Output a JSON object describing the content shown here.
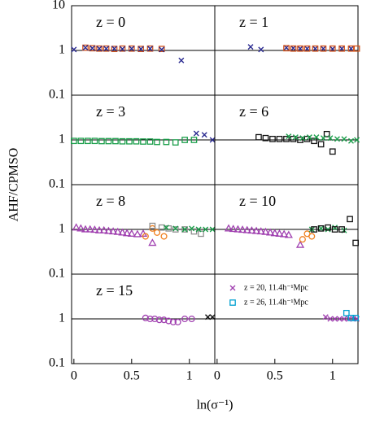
{
  "xlabel": "ln(σ⁻¹)",
  "ylabel": "AHF/CPMSO",
  "chart_data": [
    {
      "type": "scatter",
      "title": "z = 0",
      "xlim": [
        -0.02,
        1.22
      ],
      "ylim": [
        0.1,
        10
      ],
      "log_y": true,
      "hline": 1,
      "yticks": [
        0.1,
        1,
        10
      ],
      "series": [
        {
          "color": "#d4541c",
          "marker": "square",
          "x": [
            0.1,
            0.16,
            0.22,
            0.28,
            0.35,
            0.42,
            0.5,
            0.58,
            0.66,
            0.76
          ],
          "values": [
            1.15,
            1.12,
            1.1,
            1.1,
            1.08,
            1.1,
            1.1,
            1.08,
            1.1,
            1.08
          ]
        },
        {
          "color": "#2a2a90",
          "marker": "x",
          "x": [
            0,
            0.1,
            0.16,
            0.22,
            0.28,
            0.35,
            0.42,
            0.5,
            0.58,
            0.66,
            0.76,
            0.93
          ],
          "values": [
            1.05,
            1.15,
            1.12,
            1.1,
            1.1,
            1.1,
            1.08,
            1.1,
            1.08,
            1.1,
            1.05,
            0.6
          ]
        }
      ]
    },
    {
      "type": "scatter",
      "title": "z = 1",
      "xlim": [
        -0.02,
        1.22
      ],
      "ylim": [
        0.1,
        10
      ],
      "log_y": true,
      "hline": 1,
      "series": [
        {
          "color": "#2a2a90",
          "marker": "x",
          "x": [
            0.29,
            0.38,
            0.6,
            0.66,
            0.72,
            0.78,
            0.85,
            0.92,
            1.0,
            1.08,
            1.16
          ],
          "values": [
            1.2,
            1.05,
            1.15,
            1.12,
            1.1,
            1.1,
            1.1,
            1.1,
            1.08,
            1.1,
            1.1
          ]
        },
        {
          "color": "#d4541c",
          "marker": "square",
          "x": [
            0.6,
            0.66,
            0.72,
            0.78,
            0.85,
            0.92,
            1.0,
            1.08,
            1.16,
            1.21
          ],
          "values": [
            1.12,
            1.1,
            1.1,
            1.1,
            1.1,
            1.1,
            1.1,
            1.1,
            1.1,
            1.1
          ]
        }
      ]
    },
    {
      "type": "scatter",
      "title": "z = 3",
      "xlim": [
        -0.02,
        1.22
      ],
      "ylim": [
        0.1,
        10
      ],
      "log_y": true,
      "hline": 1,
      "yticks": [
        0.1,
        1
      ],
      "series": [
        {
          "color": "#1a9e4a",
          "marker": "square",
          "x": [
            0,
            0.06,
            0.12,
            0.18,
            0.24,
            0.3,
            0.36,
            0.42,
            0.48,
            0.54,
            0.6,
            0.66,
            0.72,
            0.8,
            0.88,
            0.96,
            1.04
          ],
          "values": [
            0.95,
            0.95,
            0.95,
            0.95,
            0.94,
            0.94,
            0.94,
            0.93,
            0.93,
            0.93,
            0.92,
            0.92,
            0.9,
            0.9,
            0.88,
            1.0,
            1.0
          ]
        },
        {
          "color": "#2a2a90",
          "marker": "x",
          "x": [
            1.06,
            1.13,
            1.2
          ],
          "values": [
            1.4,
            1.3,
            1.0
          ]
        }
      ]
    },
    {
      "type": "scatter",
      "title": "z = 6",
      "xlim": [
        -0.02,
        1.22
      ],
      "ylim": [
        0.1,
        10
      ],
      "log_y": true,
      "hline": 1,
      "series": [
        {
          "color": "#111111",
          "marker": "square",
          "x": [
            0.36,
            0.42,
            0.48,
            0.54,
            0.6,
            0.66,
            0.72,
            0.78,
            0.84,
            0.9,
            0.95,
            1.0
          ],
          "values": [
            1.15,
            1.1,
            1.05,
            1.05,
            1.05,
            1.05,
            1.0,
            1.05,
            0.95,
            0.8,
            1.35,
            0.55
          ]
        },
        {
          "color": "#1a9e4a",
          "marker": "x",
          "x": [
            0.62,
            0.68,
            0.74,
            0.8,
            0.86,
            0.92,
            0.98,
            1.04,
            1.1,
            1.16,
            1.21
          ],
          "values": [
            1.2,
            1.15,
            1.1,
            1.15,
            1.15,
            1.1,
            1.1,
            1.05,
            1.05,
            0.95,
            1.0
          ]
        }
      ]
    },
    {
      "type": "scatter",
      "title": "z = 8",
      "xlim": [
        -0.02,
        1.22
      ],
      "ylim": [
        0.1,
        10
      ],
      "log_y": true,
      "hline": 1,
      "yticks": [
        0.1,
        1
      ],
      "series": [
        {
          "color": "#a040b0",
          "marker": "triangle",
          "x": [
            0.02,
            0.06,
            0.1,
            0.14,
            0.18,
            0.22,
            0.26,
            0.3,
            0.34,
            0.38,
            0.42,
            0.46,
            0.5,
            0.55,
            0.6,
            0.68
          ],
          "values": [
            1.1,
            1.05,
            1.0,
            1.0,
            0.98,
            0.95,
            0.95,
            0.92,
            0.9,
            0.88,
            0.85,
            0.82,
            0.8,
            0.78,
            0.8,
            0.5
          ]
        },
        {
          "color": "#f08020",
          "marker": "circle",
          "x": [
            0.62,
            0.68,
            0.72,
            0.78
          ],
          "values": [
            0.7,
            1.05,
            0.85,
            0.7
          ]
        },
        {
          "color": "#909090",
          "marker": "square",
          "x": [
            0.68,
            0.76,
            0.82,
            0.88,
            0.96,
            1.04,
            1.1
          ],
          "values": [
            1.2,
            1.1,
            1.05,
            1.0,
            1.0,
            0.9,
            0.8
          ]
        },
        {
          "color": "#1a9e4a",
          "marker": "x",
          "x": [
            0.8,
            0.88,
            0.96,
            1.02,
            1.08,
            1.14,
            1.2
          ],
          "values": [
            1.1,
            1.05,
            1.0,
            1.05,
            1.0,
            1.0,
            1.0
          ]
        }
      ]
    },
    {
      "type": "scatter",
      "title": "z = 10",
      "xlim": [
        -0.02,
        1.22
      ],
      "ylim": [
        0.1,
        10
      ],
      "log_y": true,
      "hline": 1,
      "series": [
        {
          "color": "#a040b0",
          "marker": "triangle",
          "x": [
            0.1,
            0.14,
            0.18,
            0.22,
            0.26,
            0.3,
            0.34,
            0.38,
            0.42,
            0.46,
            0.5,
            0.54,
            0.58,
            0.62,
            0.72
          ],
          "values": [
            1.05,
            1.02,
            1.0,
            0.98,
            0.96,
            0.94,
            0.92,
            0.9,
            0.88,
            0.85,
            0.82,
            0.8,
            0.78,
            0.75,
            0.45
          ]
        },
        {
          "color": "#f08020",
          "marker": "circle",
          "x": [
            0.74,
            0.78,
            0.82
          ],
          "values": [
            0.6,
            0.8,
            0.7
          ]
        },
        {
          "color": "#1a9e4a",
          "marker": "x",
          "x": [
            0.82,
            0.9,
            0.96,
            1.02,
            1.1
          ],
          "values": [
            1.0,
            1.05,
            1.0,
            1.1,
            0.95
          ]
        },
        {
          "color": "#111111",
          "marker": "square",
          "x": [
            0.84,
            0.9,
            0.96,
            1.02,
            1.08,
            1.15,
            1.2
          ],
          "values": [
            1.0,
            1.05,
            1.1,
            1.0,
            1.0,
            1.7,
            0.5
          ]
        }
      ]
    },
    {
      "type": "scatter",
      "title": "z = 15",
      "xlim": [
        -0.02,
        1.22
      ],
      "ylim": [
        0.1,
        10
      ],
      "log_y": true,
      "hline": 1,
      "yticks": [
        0.1,
        1
      ],
      "xticks": [
        0,
        0.5,
        1
      ],
      "series": [
        {
          "color": "#a040b0",
          "marker": "circle",
          "x": [
            0.62,
            0.66,
            0.7,
            0.74,
            0.78,
            0.82,
            0.86,
            0.9,
            0.96,
            1.02
          ],
          "values": [
            1.05,
            1.0,
            1.0,
            0.95,
            0.95,
            0.9,
            0.85,
            0.85,
            1.0,
            1.0
          ]
        },
        {
          "color": "#111111",
          "marker": "x",
          "x": [
            1.16,
            1.2
          ],
          "values": [
            1.1,
            1.1
          ]
        }
      ]
    },
    {
      "type": "scatter",
      "xlim": [
        -0.02,
        1.22
      ],
      "ylim": [
        0.1,
        10
      ],
      "log_y": true,
      "hline": 1,
      "xticks": [
        0,
        0.5,
        1
      ],
      "series": [
        {
          "name": "z = 20, 11.4h⁻¹Mpc",
          "color": "#a040b0",
          "marker": "x",
          "x": [
            0.94,
            0.98,
            1.02,
            1.06,
            1.1,
            1.14,
            1.18,
            1.21
          ],
          "values": [
            1.1,
            1.0,
            1.0,
            1.0,
            1.0,
            1.0,
            1.0,
            1.0
          ]
        },
        {
          "name": "z = 26, 11.4h⁻¹Mpc",
          "color": "#00a0d0",
          "marker": "square",
          "x": [
            1.12,
            1.16,
            1.2
          ],
          "values": [
            1.35,
            1.05,
            1.05
          ]
        }
      ]
    }
  ]
}
